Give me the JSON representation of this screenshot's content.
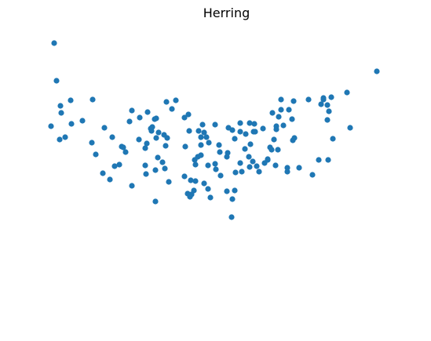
{
  "chart_data": {
    "type": "scatter",
    "title": "Herring",
    "xlabel": "",
    "ylabel": "",
    "axes_visible": false,
    "grid": false,
    "xlim": [
      0,
      469
    ],
    "ylim": [
      0,
      359
    ],
    "color": "#1f77b4",
    "points": [
      [
        16,
        288
      ],
      [
        13,
        336
      ],
      [
        62,
        264
      ],
      [
        22,
        247
      ],
      [
        34,
        263
      ],
      [
        20,
        213
      ],
      [
        49,
        237
      ],
      [
        21,
        256
      ],
      [
        9,
        230
      ],
      [
        35,
        233
      ],
      [
        27,
        216
      ],
      [
        77,
        228
      ],
      [
        84,
        162
      ],
      [
        61,
        209
      ],
      [
        66,
        194
      ],
      [
        75,
        170
      ],
      [
        96,
        181
      ],
      [
        87,
        216
      ],
      [
        104,
        197
      ],
      [
        90,
        179
      ],
      [
        99,
        204
      ],
      [
        101,
        203
      ],
      [
        112,
        154
      ],
      [
        130,
        169
      ],
      [
        143,
        240
      ],
      [
        141,
        239
      ],
      [
        112,
        250
      ],
      [
        109,
        236
      ],
      [
        121,
        213
      ],
      [
        122,
        241
      ],
      [
        138,
        229
      ],
      [
        131,
        208
      ],
      [
        143,
        215
      ],
      [
        146,
        222
      ],
      [
        153,
        219
      ],
      [
        163,
        252
      ],
      [
        157,
        215
      ],
      [
        145,
        190
      ],
      [
        142,
        174
      ],
      [
        137,
        224
      ],
      [
        136,
        227
      ],
      [
        132,
        248
      ],
      [
        129,
        202
      ],
      [
        129,
        180
      ],
      [
        142,
        134
      ],
      [
        151,
        184
      ],
      [
        154,
        176
      ],
      [
        159,
        159
      ],
      [
        156,
        261
      ],
      [
        168,
        263
      ],
      [
        179,
        241
      ],
      [
        185,
        224
      ],
      [
        184,
        245
      ],
      [
        187,
        161
      ],
      [
        188,
        143
      ],
      [
        193,
        160
      ],
      [
        196,
        191
      ],
      [
        200,
        216
      ],
      [
        197,
        224
      ],
      [
        200,
        206
      ],
      [
        200,
        193
      ],
      [
        204,
        222
      ],
      [
        202,
        232
      ],
      [
        210,
        209
      ],
      [
        207,
        216
      ],
      [
        224,
        197
      ],
      [
        218,
        232
      ],
      [
        219,
        175
      ],
      [
        209,
        150
      ],
      [
        225,
        167
      ],
      [
        234,
        196
      ],
      [
        235,
        228
      ],
      [
        240,
        225
      ],
      [
        250,
        234
      ],
      [
        250,
        223
      ],
      [
        243,
        214
      ],
      [
        252,
        172
      ],
      [
        257,
        220
      ],
      [
        262,
        234
      ],
      [
        262,
        178
      ],
      [
        256,
        201
      ],
      [
        261,
        191
      ],
      [
        263,
        207
      ],
      [
        267,
        223
      ],
      [
        274,
        172
      ],
      [
        271,
        179
      ],
      [
        269,
        223
      ],
      [
        279,
        227
      ],
      [
        281,
        183
      ],
      [
        285,
        187
      ],
      [
        290,
        200
      ],
      [
        296,
        226
      ],
      [
        296,
        230
      ],
      [
        293,
        213
      ],
      [
        288,
        203
      ],
      [
        299,
        242
      ],
      [
        302,
        264
      ],
      [
        298,
        200
      ],
      [
        295,
        180
      ],
      [
        302,
        251
      ],
      [
        305,
        231
      ],
      [
        310,
        177
      ],
      [
        316,
        239
      ],
      [
        318,
        262
      ],
      [
        312,
        251
      ],
      [
        317,
        212
      ],
      [
        319,
        215
      ],
      [
        325,
        177
      ],
      [
        337,
        264
      ],
      [
        350,
        187
      ],
      [
        353,
        258
      ],
      [
        362,
        187
      ],
      [
        361,
        238
      ],
      [
        366,
        267
      ],
      [
        368,
        214
      ],
      [
        356,
        266
      ],
      [
        361,
        257
      ],
      [
        356,
        264
      ],
      [
        363,
        249
      ],
      [
        386,
        273
      ],
      [
        424,
        300
      ],
      [
        390,
        228
      ],
      [
        285,
        188
      ],
      [
        266,
        185
      ],
      [
        250,
        183
      ],
      [
        243,
        148
      ],
      [
        233,
        147
      ],
      [
        209,
        180
      ],
      [
        191,
        148
      ],
      [
        186,
        140
      ],
      [
        179,
        166
      ],
      [
        183,
        144
      ],
      [
        192,
        187
      ],
      [
        155,
        205
      ],
      [
        193,
        181
      ],
      [
        223,
        206
      ],
      [
        233,
        191
      ],
      [
        204,
        157
      ],
      [
        212,
        139
      ],
      [
        240,
        137
      ],
      [
        268,
        233
      ],
      [
        239,
        114
      ],
      [
        180,
        204
      ],
      [
        218,
        182
      ],
      [
        244,
        171
      ],
      [
        310,
        172
      ],
      [
        291,
        247
      ],
      [
        342,
        168
      ]
    ]
  }
}
